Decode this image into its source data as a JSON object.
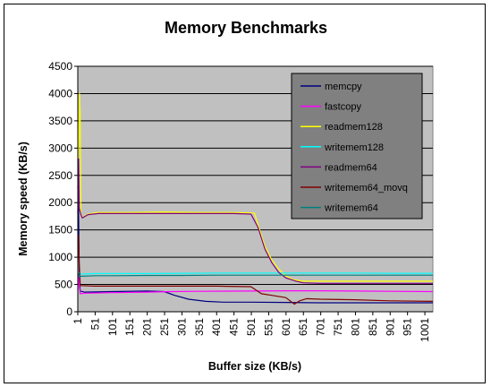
{
  "chart_data": {
    "type": "line",
    "title": "Memory Benchmarks",
    "xlabel": "Buffer size (KB/s)",
    "ylabel": "Memory speed (KB/s)",
    "xlim": [
      1,
      1024
    ],
    "ylim": [
      0,
      4500
    ],
    "y_ticks": [
      0,
      500,
      1000,
      1500,
      2000,
      2500,
      3000,
      3500,
      4000,
      4500
    ],
    "x_ticks": [
      1,
      51,
      101,
      151,
      201,
      251,
      301,
      351,
      401,
      451,
      501,
      551,
      601,
      651,
      701,
      751,
      801,
      851,
      901,
      951,
      1001
    ],
    "grid": true,
    "legend_position": "top-right",
    "series": [
      {
        "name": "memcpy",
        "color": "#000080",
        "points": [
          [
            1,
            2300
          ],
          [
            3,
            1900
          ],
          [
            5,
            700
          ],
          [
            8,
            380
          ],
          [
            20,
            360
          ],
          [
            100,
            370
          ],
          [
            200,
            380
          ],
          [
            250,
            370
          ],
          [
            280,
            300
          ],
          [
            320,
            230
          ],
          [
            370,
            190
          ],
          [
            420,
            175
          ],
          [
            500,
            175
          ],
          [
            600,
            170
          ],
          [
            700,
            165
          ],
          [
            800,
            165
          ],
          [
            900,
            165
          ],
          [
            1024,
            165
          ]
        ]
      },
      {
        "name": "fastcopy",
        "color": "#FF00FF",
        "points": [
          [
            1,
            400
          ],
          [
            3,
            650
          ],
          [
            5,
            500
          ],
          [
            8,
            330
          ],
          [
            20,
            340
          ],
          [
            100,
            350
          ],
          [
            200,
            360
          ],
          [
            270,
            370
          ],
          [
            350,
            375
          ],
          [
            500,
            380
          ],
          [
            600,
            385
          ],
          [
            700,
            385
          ],
          [
            800,
            380
          ],
          [
            900,
            375
          ],
          [
            1024,
            370
          ]
        ]
      },
      {
        "name": "readmem128",
        "color": "#FFFF00",
        "points": [
          [
            1,
            2400
          ],
          [
            4,
            3200
          ],
          [
            6,
            4000
          ],
          [
            8,
            3600
          ],
          [
            10,
            1800
          ],
          [
            14,
            1730
          ],
          [
            30,
            1790
          ],
          [
            60,
            1820
          ],
          [
            150,
            1820
          ],
          [
            250,
            1830
          ],
          [
            350,
            1820
          ],
          [
            450,
            1820
          ],
          [
            510,
            1810
          ],
          [
            520,
            1600
          ],
          [
            540,
            1200
          ],
          [
            560,
            950
          ],
          [
            580,
            780
          ],
          [
            600,
            660
          ],
          [
            620,
            590
          ],
          [
            650,
            560
          ],
          [
            700,
            560
          ],
          [
            800,
            560
          ],
          [
            900,
            560
          ],
          [
            1024,
            560
          ]
        ]
      },
      {
        "name": "writemem128",
        "color": "#00FFFF",
        "points": [
          [
            1,
            680
          ],
          [
            5,
            720
          ],
          [
            10,
            690
          ],
          [
            50,
            700
          ],
          [
            100,
            700
          ],
          [
            200,
            700
          ],
          [
            300,
            705
          ],
          [
            400,
            710
          ],
          [
            500,
            710
          ],
          [
            600,
            710
          ],
          [
            700,
            710
          ],
          [
            800,
            710
          ],
          [
            900,
            705
          ],
          [
            1024,
            705
          ]
        ]
      },
      {
        "name": "readmem64",
        "color": "#800080",
        "points": [
          [
            1,
            1800
          ],
          [
            3,
            2800
          ],
          [
            5,
            1900
          ],
          [
            10,
            1780
          ],
          [
            14,
            1720
          ],
          [
            30,
            1780
          ],
          [
            60,
            1800
          ],
          [
            150,
            1800
          ],
          [
            250,
            1800
          ],
          [
            350,
            1800
          ],
          [
            450,
            1800
          ],
          [
            500,
            1790
          ],
          [
            520,
            1550
          ],
          [
            540,
            1150
          ],
          [
            560,
            900
          ],
          [
            580,
            720
          ],
          [
            600,
            620
          ],
          [
            630,
            560
          ],
          [
            650,
            530
          ],
          [
            700,
            520
          ],
          [
            800,
            520
          ],
          [
            900,
            520
          ],
          [
            1024,
            520
          ]
        ]
      },
      {
        "name": "writemem64_movq",
        "color": "#800000",
        "points": [
          [
            1,
            1300
          ],
          [
            3,
            1400
          ],
          [
            5,
            900
          ],
          [
            8,
            480
          ],
          [
            50,
            470
          ],
          [
            100,
            470
          ],
          [
            200,
            470
          ],
          [
            300,
            470
          ],
          [
            400,
            470
          ],
          [
            500,
            460
          ],
          [
            530,
            330
          ],
          [
            560,
            300
          ],
          [
            600,
            260
          ],
          [
            625,
            140
          ],
          [
            640,
            200
          ],
          [
            660,
            240
          ],
          [
            700,
            230
          ],
          [
            800,
            220
          ],
          [
            900,
            200
          ],
          [
            1024,
            190
          ]
        ]
      },
      {
        "name": "writemem64",
        "color": "#008080",
        "points": [
          [
            1,
            650
          ],
          [
            3,
            700
          ],
          [
            6,
            640
          ],
          [
            10,
            650
          ],
          [
            50,
            660
          ],
          [
            100,
            660
          ],
          [
            200,
            665
          ],
          [
            300,
            665
          ],
          [
            400,
            670
          ],
          [
            500,
            670
          ],
          [
            600,
            670
          ],
          [
            700,
            670
          ],
          [
            800,
            670
          ],
          [
            900,
            670
          ],
          [
            1024,
            670
          ]
        ]
      }
    ]
  }
}
